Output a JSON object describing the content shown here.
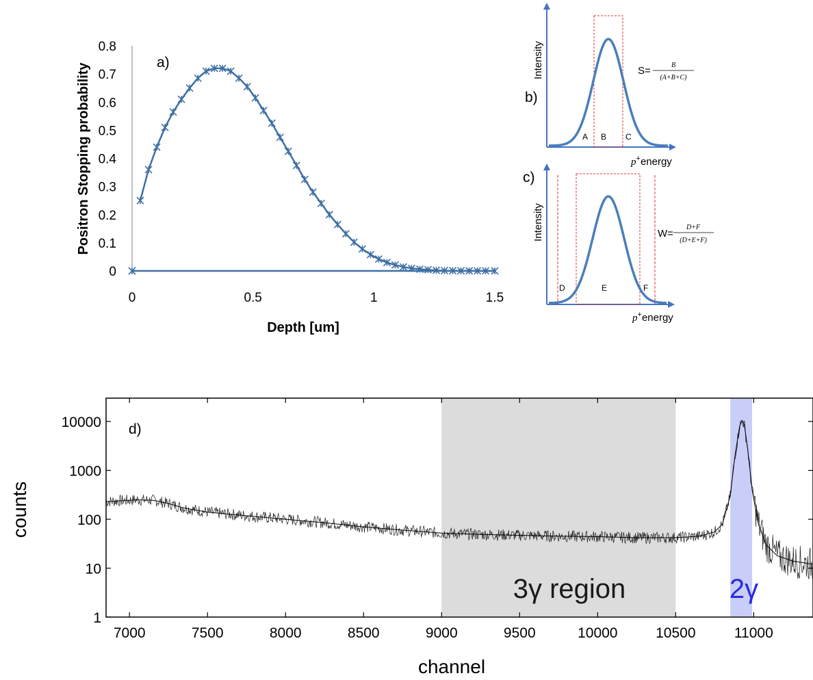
{
  "chart_data": [
    {
      "type": "line",
      "panel": "a)",
      "xlabel": "Depth [um]",
      "ylabel": "Positron Stopping probability",
      "xlim": [
        0,
        1.5
      ],
      "ylim": [
        0,
        0.8
      ],
      "x_ticks": [
        "0",
        "0.5",
        "1",
        "1.5"
      ],
      "y_ticks": [
        "0",
        "0.1",
        "0.2",
        "0.3",
        "0.4",
        "0.5",
        "0.6",
        "0.7",
        "0.8"
      ],
      "marker": "asterisk",
      "color": "#3E6FA3",
      "series": [
        {
          "x": [
            0.034,
            0.068,
            0.102,
            0.136,
            0.17,
            0.204,
            0.238,
            0.272,
            0.306,
            0.34,
            0.374,
            0.408,
            0.442,
            0.476,
            0.51,
            0.544,
            0.578,
            0.612,
            0.646,
            0.68,
            0.714,
            0.748,
            0.782,
            0.816,
            0.85,
            0.884,
            0.918,
            0.952,
            0.986,
            1.02,
            1.054,
            1.088,
            1.122,
            1.156,
            1.19,
            1.224,
            1.258,
            1.292,
            1.326,
            1.36,
            1.394,
            1.428,
            1.462,
            1.5
          ],
          "y": [
            0.25,
            0.36,
            0.44,
            0.51,
            0.565,
            0.61,
            0.65,
            0.685,
            0.71,
            0.72,
            0.72,
            0.71,
            0.685,
            0.655,
            0.615,
            0.57,
            0.525,
            0.475,
            0.425,
            0.375,
            0.325,
            0.28,
            0.24,
            0.2,
            0.165,
            0.132,
            0.102,
            0.078,
            0.058,
            0.042,
            0.03,
            0.021,
            0.014,
            0.009,
            0.006,
            0.004,
            0.002,
            0.001,
            0.0008,
            0.0005,
            0.0003,
            0.0002,
            0.0001,
            0.0
          ]
        },
        {
          "x": [
            0,
            1.5
          ],
          "y": [
            0,
            0
          ]
        }
      ]
    },
    {
      "type": "area",
      "panel": "b)",
      "ylabel": "Intensity",
      "xlabel_italic": "p",
      "xlabel_sup": "+",
      "xlabel_rest": "energy",
      "regions": [
        "A",
        "B",
        "C"
      ],
      "formula_prefix": "S=",
      "formula_num": "B",
      "formula_den": "(A+B+C)"
    },
    {
      "type": "area",
      "panel": "c)",
      "ylabel": "Intensity",
      "xlabel_italic": "p",
      "xlabel_sup": "+",
      "xlabel_rest": "energy",
      "regions": [
        "D",
        "E",
        "F"
      ],
      "formula_prefix": "W=",
      "formula_num": "D+F",
      "formula_den": "(D+E+F)"
    },
    {
      "type": "line",
      "panel": "d)",
      "xlabel": "channel",
      "ylabel": "counts",
      "xlim": [
        6850,
        11380
      ],
      "ylim": [
        1,
        30000
      ],
      "y_scale": "log",
      "x_ticks": [
        "7000",
        "7500",
        "8000",
        "8500",
        "9000",
        "9500",
        "10000",
        "10500",
        "11000"
      ],
      "y_ticks": [
        "1",
        "10",
        "100",
        "1000",
        "10000"
      ],
      "shaded_regions": [
        {
          "label": "3γ region",
          "from": 9000,
          "to": 10500,
          "color": "#DCDCDC"
        },
        {
          "label": "2γ",
          "from": 10850,
          "to": 10990,
          "color": "#C8CEF8"
        }
      ],
      "series": [
        {
          "x": [
            6850,
            6950,
            7050,
            7150,
            7250,
            7350,
            7500,
            7750,
            8000,
            8250,
            8500,
            8750,
            9000,
            9250,
            9500,
            9750,
            10000,
            10250,
            10500,
            10650,
            10750,
            10800,
            10850,
            10880,
            10910,
            10925,
            10940,
            10960,
            10990,
            11030,
            11080,
            11150,
            11250,
            11380
          ],
          "y": [
            230,
            240,
            250,
            245,
            210,
            170,
            140,
            118,
            100,
            85,
            70,
            60,
            52,
            49,
            47,
            45,
            44,
            42,
            42,
            45,
            55,
            80,
            300,
            2000,
            8000,
            10500,
            8500,
            3000,
            400,
            80,
            30,
            18,
            14,
            12
          ]
        }
      ]
    }
  ]
}
